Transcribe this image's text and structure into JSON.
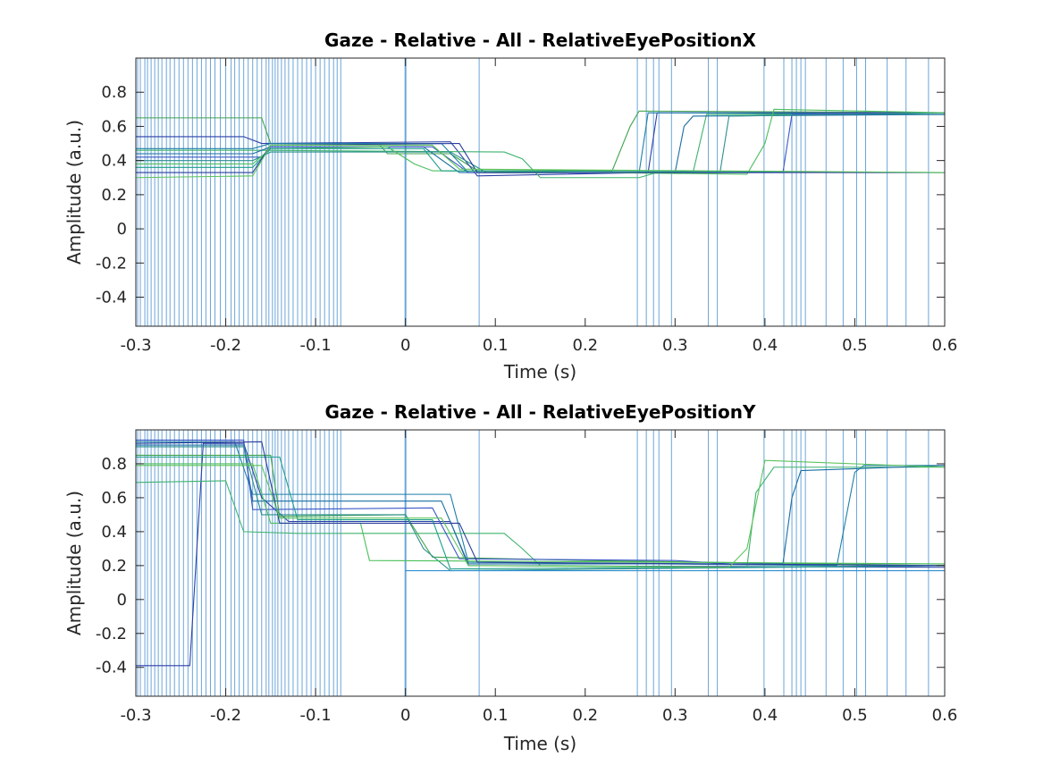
{
  "figure": {
    "background": "#ffffff"
  },
  "chart_data": [
    {
      "type": "line",
      "title": "Gaze - Relative - All - RelativeEyePositionX",
      "xlabel": "Time (s)",
      "ylabel": "Amplitude (a.u.)",
      "xlim": [
        -0.3,
        0.6
      ],
      "ylim": [
        -0.57,
        1.0
      ],
      "xticks": [
        "-0.3",
        "-0.2",
        "-0.1",
        "0",
        "0.1",
        "0.2",
        "0.3",
        "0.4",
        "0.5",
        "0.6"
      ],
      "yticks": [
        "-0.4",
        "-0.2",
        "0",
        "0.2",
        "0.4",
        "0.6",
        "0.8"
      ],
      "event_line_color": "#5b9bd5",
      "event_times": [
        -0.298,
        -0.295,
        -0.29,
        -0.287,
        -0.283,
        -0.279,
        -0.275,
        -0.271,
        -0.266,
        -0.262,
        -0.257,
        -0.252,
        -0.247,
        -0.242,
        -0.237,
        -0.232,
        -0.227,
        -0.222,
        -0.217,
        -0.212,
        -0.206,
        -0.2,
        -0.194,
        -0.19,
        -0.185,
        -0.18,
        -0.175,
        -0.17,
        -0.165,
        -0.16,
        -0.155,
        -0.152,
        -0.148,
        -0.145,
        -0.142,
        -0.138,
        -0.134,
        -0.13,
        -0.125,
        -0.12,
        -0.115,
        -0.11,
        -0.105,
        -0.1,
        -0.095,
        -0.09,
        -0.085,
        -0.08,
        -0.076,
        -0.072,
        0,
        0.082,
        0.258,
        0.268,
        0.276,
        0.282,
        0.296,
        0.337,
        0.347,
        0.399,
        0.421,
        0.43,
        0.435,
        0.44,
        0.445,
        0.468,
        0.487,
        0.502,
        0.512,
        0.536,
        0.557,
        0.582
      ],
      "series": [
        {
          "color": "#3fa34d",
          "points": [
            [
              -0.3,
              0.65
            ],
            [
              -0.16,
              0.65
            ],
            [
              -0.15,
              0.5
            ],
            [
              -0.03,
              0.5
            ],
            [
              -0.02,
              0.44
            ],
            [
              0.05,
              0.44
            ],
            [
              0.08,
              0.34
            ],
            [
              0.23,
              0.34
            ],
            [
              0.25,
              0.6
            ],
            [
              0.26,
              0.69
            ],
            [
              0.6,
              0.68
            ]
          ]
        },
        {
          "color": "#2c3fa8",
          "points": [
            [
              -0.3,
              0.54
            ],
            [
              -0.18,
              0.54
            ],
            [
              -0.16,
              0.5
            ],
            [
              0.05,
              0.51
            ],
            [
              0.08,
              0.31
            ],
            [
              0.27,
              0.33
            ],
            [
              0.28,
              0.68
            ],
            [
              0.6,
              0.68
            ]
          ]
        },
        {
          "color": "#1f7fa6",
          "points": [
            [
              -0.3,
              0.47
            ],
            [
              -0.17,
              0.47
            ],
            [
              -0.15,
              0.5
            ],
            [
              0.04,
              0.5
            ],
            [
              0.07,
              0.33
            ],
            [
              0.26,
              0.33
            ],
            [
              0.27,
              0.68
            ],
            [
              0.6,
              0.67
            ]
          ]
        },
        {
          "color": "#3eb36e",
          "points": [
            [
              -0.3,
              0.46
            ],
            [
              -0.17,
              0.46
            ],
            [
              -0.16,
              0.46
            ],
            [
              0.11,
              0.45
            ],
            [
              0.13,
              0.41
            ],
            [
              0.15,
              0.3
            ],
            [
              0.26,
              0.3
            ],
            [
              0.28,
              0.33
            ],
            [
              0.32,
              0.33
            ],
            [
              0.335,
              0.67
            ],
            [
              0.6,
              0.67
            ]
          ]
        },
        {
          "color": "#1a6ea3",
          "points": [
            [
              -0.3,
              0.44
            ],
            [
              -0.17,
              0.44
            ],
            [
              -0.15,
              0.48
            ],
            [
              0.02,
              0.48
            ],
            [
              0.06,
              0.33
            ],
            [
              0.3,
              0.33
            ],
            [
              0.31,
              0.6
            ],
            [
              0.32,
              0.66
            ],
            [
              0.6,
              0.67
            ]
          ]
        },
        {
          "color": "#3d58c7",
          "points": [
            [
              -0.3,
              0.42
            ],
            [
              -0.16,
              0.42
            ],
            [
              -0.15,
              0.48
            ],
            [
              0.03,
              0.48
            ],
            [
              0.07,
              0.33
            ],
            [
              0.42,
              0.33
            ],
            [
              0.43,
              0.67
            ],
            [
              0.6,
              0.68
            ]
          ]
        },
        {
          "color": "#2d8f8f",
          "points": [
            [
              -0.3,
              0.4
            ],
            [
              -0.17,
              0.4
            ],
            [
              -0.15,
              0.45
            ],
            [
              0.05,
              0.45
            ],
            [
              0.09,
              0.33
            ],
            [
              0.35,
              0.33
            ],
            [
              0.36,
              0.66
            ],
            [
              0.6,
              0.68
            ]
          ]
        },
        {
          "color": "#4bbf5b",
          "points": [
            [
              -0.3,
              0.38
            ],
            [
              -0.17,
              0.38
            ],
            [
              -0.15,
              0.47
            ],
            [
              -0.02,
              0.48
            ],
            [
              0.01,
              0.38
            ],
            [
              0.03,
              0.34
            ],
            [
              0.38,
              0.32
            ],
            [
              0.4,
              0.5
            ],
            [
              0.41,
              0.7
            ],
            [
              0.6,
              0.68
            ]
          ]
        },
        {
          "color": "#1d9e8a",
          "points": [
            [
              -0.3,
              0.36
            ],
            [
              -0.17,
              0.36
            ],
            [
              -0.15,
              0.47
            ],
            [
              0.02,
              0.47
            ],
            [
              0.04,
              0.34
            ],
            [
              0.6,
              0.33
            ]
          ]
        },
        {
          "color": "#2a3d9c",
          "points": [
            [
              -0.3,
              0.33
            ],
            [
              -0.17,
              0.33
            ],
            [
              -0.15,
              0.49
            ],
            [
              0.06,
              0.5
            ],
            [
              0.08,
              0.33
            ],
            [
              0.6,
              0.33
            ]
          ]
        },
        {
          "color": "#5cc35a",
          "points": [
            [
              -0.3,
              0.3
            ],
            [
              -0.17,
              0.31
            ],
            [
              -0.15,
              0.49
            ],
            [
              0.03,
              0.49
            ],
            [
              0.06,
              0.35
            ],
            [
              0.6,
              0.33
            ]
          ]
        }
      ]
    },
    {
      "type": "line",
      "title": "Gaze - Relative - All - RelativeEyePositionY",
      "xlabel": "Time (s)",
      "ylabel": "Amplitude (a.u.)",
      "xlim": [
        -0.3,
        0.6
      ],
      "ylim": [
        -0.57,
        1.0
      ],
      "xticks": [
        "-0.3",
        "-0.2",
        "-0.1",
        "0",
        "0.1",
        "0.2",
        "0.3",
        "0.4",
        "0.5",
        "0.6"
      ],
      "yticks": [
        "-0.4",
        "-0.2",
        "0",
        "0.2",
        "0.4",
        "0.6",
        "0.8"
      ],
      "event_line_color": "#5b9bd5",
      "event_times": [
        -0.298,
        -0.295,
        -0.29,
        -0.287,
        -0.283,
        -0.279,
        -0.275,
        -0.271,
        -0.266,
        -0.262,
        -0.257,
        -0.252,
        -0.247,
        -0.242,
        -0.237,
        -0.232,
        -0.227,
        -0.222,
        -0.217,
        -0.212,
        -0.206,
        -0.2,
        -0.194,
        -0.19,
        -0.185,
        -0.18,
        -0.175,
        -0.17,
        -0.165,
        -0.16,
        -0.155,
        -0.152,
        -0.148,
        -0.145,
        -0.142,
        -0.138,
        -0.134,
        -0.13,
        -0.125,
        -0.12,
        -0.115,
        -0.11,
        -0.105,
        -0.1,
        -0.095,
        -0.09,
        -0.085,
        -0.08,
        -0.076,
        -0.072,
        0,
        0.082,
        0.258,
        0.268,
        0.276,
        0.282,
        0.296,
        0.337,
        0.347,
        0.399,
        0.421,
        0.43,
        0.435,
        0.44,
        0.445,
        0.468,
        0.487,
        0.502,
        0.512,
        0.536,
        0.557,
        0.582
      ],
      "series": [
        {
          "color": "#2c3fa8",
          "points": [
            [
              -0.3,
              -0.39
            ],
            [
              -0.24,
              -0.39
            ],
            [
              -0.225,
              0.92
            ],
            [
              -0.18,
              0.92
            ],
            [
              -0.16,
              0.6
            ],
            [
              -0.13,
              0.46
            ],
            [
              0.05,
              0.46
            ],
            [
              0.07,
              0.2
            ],
            [
              0.6,
              0.19
            ]
          ]
        },
        {
          "color": "#1f7fa6",
          "points": [
            [
              -0.3,
              0.93
            ],
            [
              -0.19,
              0.93
            ],
            [
              -0.17,
              0.62
            ],
            [
              0.05,
              0.62
            ],
            [
              0.07,
              0.22
            ],
            [
              0.48,
              0.2
            ],
            [
              0.5,
              0.75
            ],
            [
              0.51,
              0.79
            ],
            [
              0.6,
              0.79
            ]
          ]
        },
        {
          "color": "#3fa34d",
          "points": [
            [
              -0.3,
              0.85
            ],
            [
              -0.15,
              0.85
            ],
            [
              -0.14,
              0.49
            ],
            [
              0.0,
              0.5
            ],
            [
              0.03,
              0.25
            ],
            [
              0.2,
              0.23
            ],
            [
              0.6,
              0.2
            ]
          ]
        },
        {
          "color": "#3eb36e",
          "points": [
            [
              -0.3,
              0.69
            ],
            [
              -0.2,
              0.7
            ],
            [
              -0.18,
              0.4
            ],
            [
              -0.12,
              0.39
            ],
            [
              0.11,
              0.39
            ],
            [
              0.13,
              0.3
            ],
            [
              0.15,
              0.2
            ],
            [
              0.38,
              0.19
            ],
            [
              0.39,
              0.63
            ],
            [
              0.41,
              0.78
            ],
            [
              0.6,
              0.78
            ]
          ]
        },
        {
          "color": "#1a6ea3",
          "points": [
            [
              -0.3,
              0.91
            ],
            [
              -0.18,
              0.91
            ],
            [
              -0.17,
              0.58
            ],
            [
              0.04,
              0.58
            ],
            [
              0.07,
              0.21
            ],
            [
              0.42,
              0.21
            ],
            [
              0.43,
              0.6
            ],
            [
              0.44,
              0.76
            ],
            [
              0.6,
              0.79
            ]
          ]
        },
        {
          "color": "#3d58c7",
          "points": [
            [
              -0.3,
              0.94
            ],
            [
              -0.18,
              0.94
            ],
            [
              -0.17,
              0.53
            ],
            [
              0.03,
              0.54
            ],
            [
              0.06,
              0.24
            ],
            [
              0.3,
              0.23
            ],
            [
              0.36,
              0.21
            ],
            [
              0.6,
              0.2
            ]
          ]
        },
        {
          "color": "#2d8f8f",
          "points": [
            [
              -0.3,
              0.9
            ],
            [
              -0.18,
              0.9
            ],
            [
              -0.16,
              0.5
            ],
            [
              0.0,
              0.5
            ],
            [
              0.02,
              0.3
            ],
            [
              0.05,
              0.17
            ],
            [
              0.6,
              0.2
            ]
          ]
        },
        {
          "color": "#4bbf5b",
          "points": [
            [
              -0.3,
              0.8
            ],
            [
              -0.17,
              0.8
            ],
            [
              -0.15,
              0.45
            ],
            [
              -0.05,
              0.45
            ],
            [
              -0.04,
              0.23
            ],
            [
              0.6,
              0.21
            ]
          ]
        },
        {
          "color": "#1d9e8a",
          "points": [
            [
              -0.3,
              0.84
            ],
            [
              -0.14,
              0.84
            ],
            [
              -0.12,
              0.47
            ],
            [
              0.03,
              0.47
            ],
            [
              0.05,
              0.18
            ],
            [
              0.6,
              0.2
            ]
          ]
        },
        {
          "color": "#2a3d9c",
          "points": [
            [
              -0.3,
              0.92
            ],
            [
              -0.16,
              0.93
            ],
            [
              -0.14,
              0.45
            ],
            [
              0.06,
              0.45
            ],
            [
              0.08,
              0.22
            ],
            [
              0.6,
              0.2
            ]
          ]
        },
        {
          "color": "#5cc35a",
          "points": [
            [
              -0.3,
              0.79
            ],
            [
              -0.16,
              0.79
            ],
            [
              -0.14,
              0.48
            ],
            [
              0.04,
              0.48
            ],
            [
              0.07,
              0.2
            ],
            [
              0.36,
              0.19
            ],
            [
              0.38,
              0.3
            ],
            [
              0.4,
              0.82
            ],
            [
              0.6,
              0.78
            ]
          ]
        },
        {
          "color": "#2e8fd0",
          "points": [
            [
              0.0,
              0.17
            ],
            [
              0.6,
              0.17
            ]
          ]
        }
      ]
    }
  ]
}
